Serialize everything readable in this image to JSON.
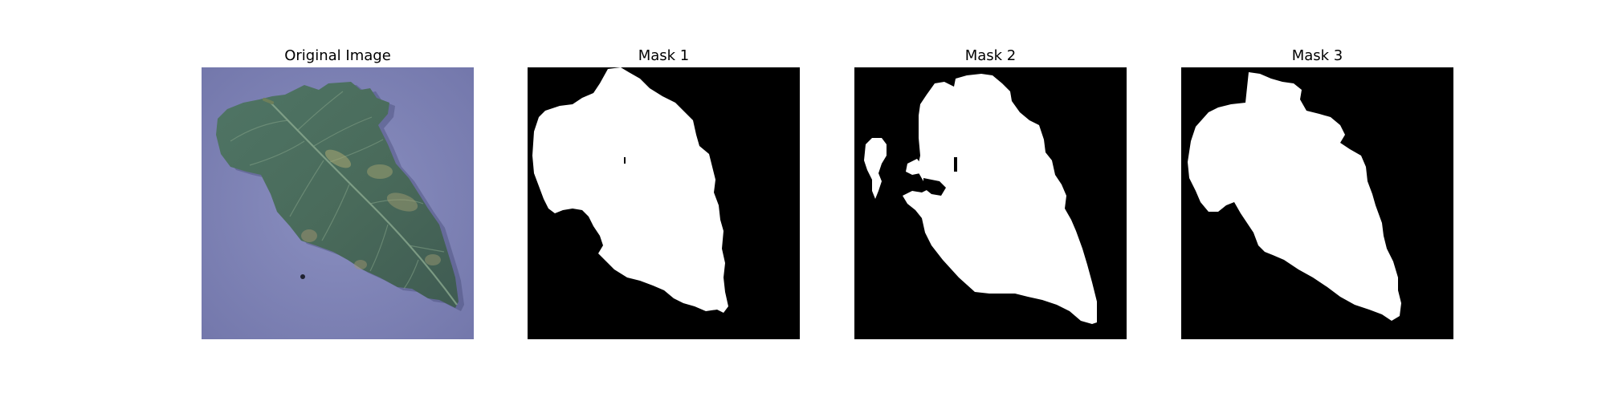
{
  "panels": [
    {
      "title": "Original Image",
      "content": "photo of a tomato leaf with disease spots on a blue-purple background"
    },
    {
      "title": "Mask 1",
      "content": "binary segmentation mask"
    },
    {
      "title": "Mask 2",
      "content": "binary segmentation mask"
    },
    {
      "title": "Mask 3",
      "content": "binary segmentation mask"
    }
  ],
  "colors": {
    "background": "#ffffff",
    "mask_foreground": "#ffffff",
    "mask_background": "#000000",
    "photo_backdrop": "#7f84b6",
    "leaf": "#4e6c5d"
  }
}
